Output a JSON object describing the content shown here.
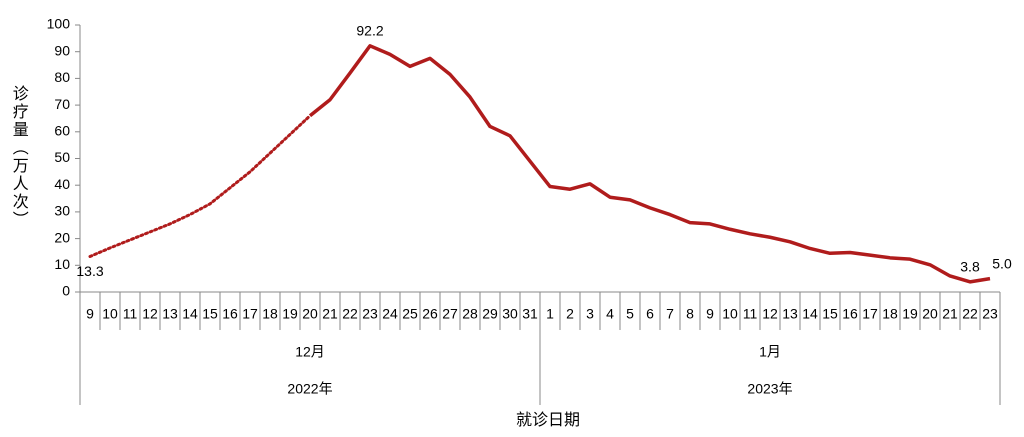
{
  "chart_data": {
    "type": "line",
    "y_label": "诊疗量（万人次）",
    "x_label": "就诊日期",
    "categories": [
      "9",
      "10",
      "11",
      "12",
      "13",
      "14",
      "15",
      "16",
      "17",
      "18",
      "19",
      "20",
      "21",
      "22",
      "23",
      "24",
      "25",
      "26",
      "27",
      "28",
      "29",
      "30",
      "31",
      "1",
      "2",
      "3",
      "4",
      "5",
      "6",
      "7",
      "8",
      "9",
      "10",
      "11",
      "12",
      "13",
      "14",
      "15",
      "16",
      "17",
      "18",
      "19",
      "20",
      "21",
      "22",
      "23"
    ],
    "months": [
      "12月",
      "1月"
    ],
    "years": [
      "2022年",
      "2023年"
    ],
    "ylim": [
      0,
      100
    ],
    "yticks": [
      0,
      10,
      20,
      30,
      40,
      50,
      60,
      70,
      80,
      90,
      100
    ],
    "series": [
      {
        "color": "#b01c1c",
        "dashed": true,
        "values": [
          13.3,
          16.5,
          19.5,
          22.5,
          25.5,
          29,
          33,
          39,
          45,
          52,
          59,
          66,
          null,
          null,
          null,
          null,
          null,
          null,
          null,
          null,
          null,
          null,
          null,
          null,
          null,
          null,
          null,
          null,
          null,
          null,
          null,
          null,
          null,
          null,
          null,
          null,
          null,
          null,
          null,
          null,
          null,
          null,
          null,
          null,
          null,
          null
        ],
        "value_labels": [
          "13.3",
          null,
          null,
          null,
          null,
          null,
          null,
          null,
          null,
          null,
          null,
          null,
          null,
          null,
          null,
          null,
          null,
          null,
          null,
          null,
          null,
          null,
          null,
          null,
          null,
          null,
          null,
          null,
          null,
          null,
          null,
          null,
          null,
          null,
          null,
          null,
          null,
          null,
          null,
          null,
          null,
          null,
          null,
          null,
          null,
          null
        ]
      },
      {
        "color": "#b01c1c",
        "dashed": false,
        "values": [
          null,
          null,
          null,
          null,
          null,
          null,
          null,
          null,
          null,
          null,
          null,
          66,
          72,
          82,
          92.2,
          89,
          84.5,
          87.5,
          81.5,
          73,
          62,
          58.5,
          49,
          39.5,
          38.5,
          40.5,
          35.5,
          34.5,
          31.5,
          29,
          26,
          25.5,
          23.5,
          21.8,
          20.5,
          18.8,
          16.3,
          14.5,
          14.8,
          13.8,
          12.8,
          12.3,
          10.2,
          6,
          3.8,
          5.0
        ],
        "value_labels": [
          null,
          null,
          null,
          null,
          null,
          null,
          null,
          null,
          null,
          null,
          null,
          null,
          null,
          null,
          "92.2",
          null,
          null,
          null,
          null,
          null,
          null,
          null,
          null,
          null,
          null,
          null,
          null,
          null,
          null,
          null,
          null,
          null,
          null,
          null,
          null,
          null,
          null,
          null,
          null,
          null,
          null,
          null,
          null,
          null,
          "3.8",
          "5.0"
        ]
      }
    ]
  }
}
